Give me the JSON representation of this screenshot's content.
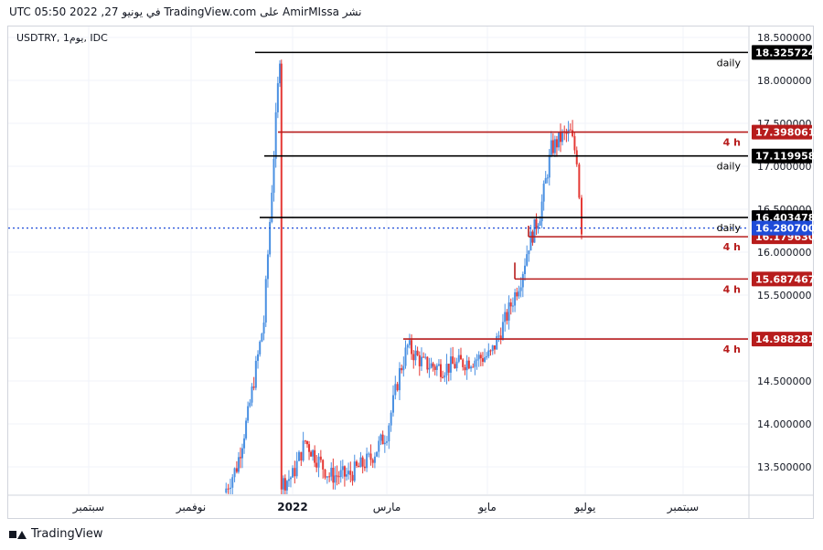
{
  "header": {
    "published_line": "نشر AmirMIssa على TradingView.com في يونيو 27, 2022 05:50 UTC"
  },
  "symbol_label": "USDTRY, 1يوم, IDC",
  "footer": {
    "brand": "TradingView"
  },
  "colors": {
    "up": "#4a90e2",
    "down": "#e53935",
    "level_black": "#000000",
    "level_red": "#b71c1c",
    "current_price": "#1e4bd8"
  },
  "chart_data": {
    "type": "candlestick",
    "symbol": "USDTRY",
    "interval": "1D",
    "x_ticks": [
      "سبتمبر",
      "نوفمبر",
      "2022",
      "مارس",
      "مايو",
      "يوليو",
      "سبتمبر"
    ],
    "y_ticks": [
      "13.500000",
      "14.000000",
      "14.500000",
      "15.000000",
      "15.500000",
      "16.000000",
      "16.500000",
      "17.000000",
      "17.500000",
      "18.000000",
      "18.500000"
    ],
    "ylim": [
      13.25,
      18.7
    ],
    "levels": [
      {
        "price": 18.325724,
        "label": "18.325724",
        "tag": "daily",
        "color": "black"
      },
      {
        "price": 17.398061,
        "label": "17.398061",
        "tag": "4 h",
        "color": "red"
      },
      {
        "price": 17.119958,
        "label": "17.119958",
        "tag": "daily",
        "color": "black"
      },
      {
        "price": 16.403478,
        "label": "16.403478",
        "tag": "daily",
        "color": "black"
      },
      {
        "price": 16.17963,
        "label": "16.179630",
        "tag": "4 h",
        "color": "red"
      },
      {
        "price": 15.687467,
        "label": "15.687467",
        "tag": "4 h",
        "color": "red"
      },
      {
        "price": 14.988281,
        "label": "14.988281",
        "tag": "4 h",
        "color": "red"
      }
    ],
    "current_price": {
      "price": 16.2807,
      "label": "16.280700"
    },
    "price_path": [
      [
        "2021-11-15",
        13.2
      ],
      [
        "2021-11-23",
        13.5
      ],
      [
        "2021-11-30",
        14.1
      ],
      [
        "2021-12-10",
        15.2
      ],
      [
        "2021-12-20",
        18.3
      ],
      [
        "2021-12-21",
        13.3
      ],
      [
        "2021-12-28",
        13.4
      ],
      [
        "2022-01-05",
        13.8
      ],
      [
        "2022-01-12",
        13.6
      ],
      [
        "2022-01-20",
        13.4
      ],
      [
        "2022-02-01",
        13.4
      ],
      [
        "2022-02-15",
        13.6
      ],
      [
        "2022-02-25",
        13.9
      ],
      [
        "2022-03-05",
        14.6
      ],
      [
        "2022-03-10",
        14.9
      ],
      [
        "2022-03-20",
        14.7
      ],
      [
        "2022-04-01",
        14.65
      ],
      [
        "2022-04-20",
        14.75
      ],
      [
        "2022-05-01",
        14.8
      ],
      [
        "2022-05-10",
        15.2
      ],
      [
        "2022-05-20",
        15.7
      ],
      [
        "2022-05-25",
        16.1
      ],
      [
        "2022-06-01",
        16.45
      ],
      [
        "2022-06-08",
        17.2
      ],
      [
        "2022-06-15",
        17.35
      ],
      [
        "2022-06-20",
        17.38
      ],
      [
        "2022-06-24",
        17.1
      ],
      [
        "2022-06-27",
        16.28
      ]
    ]
  }
}
